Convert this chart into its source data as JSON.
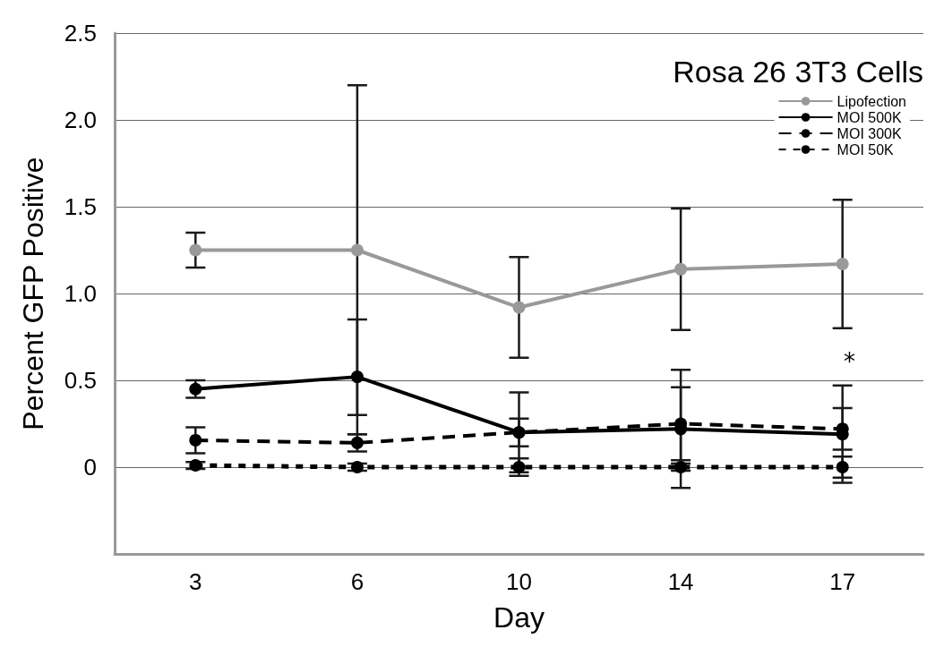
{
  "chart_data": {
    "type": "line",
    "title": "Rosa 26 3T3 Cells",
    "xlabel": "Day",
    "ylabel": "Percent GFP Positive",
    "categories": [
      "3",
      "6",
      "10",
      "14",
      "17"
    ],
    "series": [
      {
        "name": "Lipofection",
        "color": "#999999",
        "line_style": "solid",
        "values": [
          1.25,
          1.25,
          0.92,
          1.14,
          1.17
        ],
        "errors": [
          0.1,
          0.95,
          0.29,
          0.35,
          0.37
        ]
      },
      {
        "name": "MOI 500K",
        "color": "#000000",
        "line_style": "solid",
        "values": [
          0.45,
          0.52,
          0.2,
          0.22,
          0.19
        ],
        "errors": [
          0.05,
          0.33,
          0.23,
          0.34,
          0.28
        ]
      },
      {
        "name": "MOI 300K",
        "color": "#000000",
        "line_style": "dashed",
        "values": [
          0.155,
          0.14,
          0.2,
          0.25,
          0.22
        ],
        "errors": [
          0.075,
          0.05,
          0.08,
          0.21,
          0.12
        ]
      },
      {
        "name": "MOI 50K",
        "color": "#000000",
        "line_style": "dotted",
        "values": [
          0.01,
          0.0,
          0.0,
          0.0,
          0.0
        ],
        "errors": [
          0.02,
          0.02,
          0.05,
          0.02,
          0.06
        ]
      }
    ],
    "ylim": [
      -0.5,
      2.5
    ],
    "yticks": [
      {
        "value": -0.5,
        "label": null
      },
      0,
      {
        "value": 0.5,
        "label": "0.5"
      },
      {
        "value": 1,
        "label": "1.0"
      },
      {
        "value": 1.5,
        "label": "1.5"
      },
      {
        "value": 2,
        "label": "2.0"
      },
      {
        "value": 2.5,
        "label": "2.5"
      }
    ],
    "grid": "y",
    "legend": "top right",
    "marker": "circle",
    "annotations": [
      "*"
    ]
  }
}
